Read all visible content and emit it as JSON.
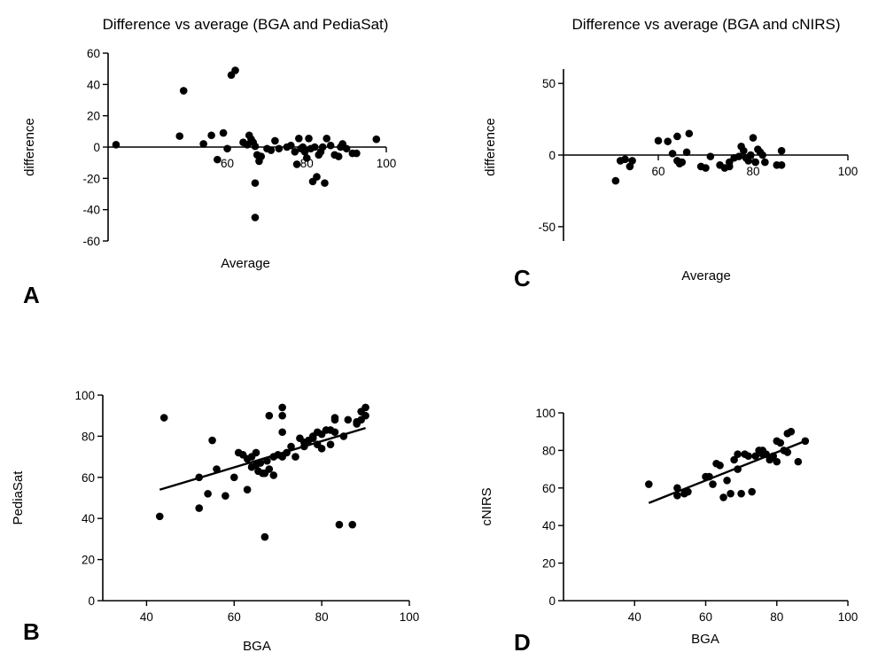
{
  "panels": {
    "a": {
      "letter": "A"
    },
    "b": {
      "letter": "B"
    },
    "c": {
      "letter": "C"
    },
    "d": {
      "letter": "D"
    }
  },
  "chart_data": [
    {
      "id": "a",
      "type": "scatter",
      "title": "Difference vs average (BGA and PediaSat)",
      "xlabel": "Average",
      "ylabel": "difference",
      "xlim": [
        30,
        100
      ],
      "ylim": [
        -60,
        60
      ],
      "xticks": [
        60,
        80,
        100
      ],
      "yticks": [
        -60,
        -40,
        -20,
        0,
        20,
        40,
        60
      ],
      "x_axis_at_y": 0,
      "grid": false,
      "points": [
        [
          32,
          1.5
        ],
        [
          48,
          7
        ],
        [
          49,
          36
        ],
        [
          54,
          2
        ],
        [
          56,
          7.5
        ],
        [
          57.5,
          -8
        ],
        [
          59,
          9
        ],
        [
          60,
          -1
        ],
        [
          61,
          46
        ],
        [
          62,
          49
        ],
        [
          64,
          3
        ],
        [
          65,
          1.5
        ],
        [
          65.5,
          7.5
        ],
        [
          66,
          5
        ],
        [
          66.5,
          3
        ],
        [
          67,
          0.5
        ],
        [
          67.5,
          -5
        ],
        [
          68,
          -9
        ],
        [
          68.5,
          -6
        ],
        [
          67,
          -23
        ],
        [
          67,
          -45
        ],
        [
          70,
          -1
        ],
        [
          71,
          -2
        ],
        [
          72,
          4
        ],
        [
          73,
          -1
        ],
        [
          75,
          0
        ],
        [
          76,
          1
        ],
        [
          77,
          -3
        ],
        [
          77.5,
          -11
        ],
        [
          78,
          5.5
        ],
        [
          78.5,
          -1
        ],
        [
          79,
          0
        ],
        [
          79.5,
          -3
        ],
        [
          80,
          -7
        ],
        [
          80.5,
          5.5
        ],
        [
          81,
          -1
        ],
        [
          81.5,
          -22
        ],
        [
          82,
          0
        ],
        [
          82.5,
          -19
        ],
        [
          83,
          -5
        ],
        [
          83.5,
          -3
        ],
        [
          84,
          0
        ],
        [
          84.5,
          -23
        ],
        [
          85,
          5.5
        ],
        [
          86,
          1
        ],
        [
          87,
          -5
        ],
        [
          88,
          -6
        ],
        [
          88.5,
          0
        ],
        [
          89,
          2
        ],
        [
          90,
          -1
        ],
        [
          91.5,
          -4
        ],
        [
          92.5,
          -4
        ],
        [
          97.5,
          5
        ]
      ]
    },
    {
      "id": "c",
      "type": "scatter",
      "title": "Difference vs average (BGA and cNIRS)",
      "xlabel": "Average",
      "ylabel": "difference",
      "xlim": [
        40,
        100
      ],
      "ylim": [
        -60,
        60
      ],
      "xticks": [
        60,
        80,
        100
      ],
      "yticks": [
        -50,
        0,
        50
      ],
      "x_axis_at_y": 0,
      "grid": false,
      "points": [
        [
          51,
          -18
        ],
        [
          52,
          -4
        ],
        [
          53,
          -3
        ],
        [
          54,
          -8
        ],
        [
          54.5,
          -4
        ],
        [
          60,
          10
        ],
        [
          62,
          9.5
        ],
        [
          63,
          1
        ],
        [
          64,
          -4
        ],
        [
          64,
          13
        ],
        [
          64.5,
          -6
        ],
        [
          65,
          -5
        ],
        [
          66,
          2
        ],
        [
          66.5,
          15
        ],
        [
          69,
          -8
        ],
        [
          70,
          -9
        ],
        [
          71,
          -1
        ],
        [
          73,
          -7
        ],
        [
          74,
          -9
        ],
        [
          75,
          -8
        ],
        [
          75,
          -5
        ],
        [
          76,
          -2
        ],
        [
          77,
          -1
        ],
        [
          77.5,
          6
        ],
        [
          78,
          3
        ],
        [
          78.5,
          -2
        ],
        [
          79,
          -4
        ],
        [
          79.5,
          0
        ],
        [
          80,
          12
        ],
        [
          80.5,
          -5
        ],
        [
          81,
          4
        ],
        [
          81.5,
          2
        ],
        [
          82,
          0
        ],
        [
          82.5,
          -5
        ],
        [
          85,
          -7
        ],
        [
          86,
          -7
        ],
        [
          86,
          3
        ]
      ]
    },
    {
      "id": "b",
      "type": "scatter",
      "xlabel": "BGA",
      "ylabel": "PediaSat",
      "xlim": [
        30,
        100
      ],
      "ylim": [
        0,
        100
      ],
      "xticks": [
        40,
        60,
        80,
        100
      ],
      "yticks": [
        0,
        20,
        40,
        60,
        80,
        100
      ],
      "grid": false,
      "regression_line": [
        [
          43,
          54
        ],
        [
          90,
          84
        ]
      ],
      "points": [
        [
          43,
          41
        ],
        [
          44,
          89
        ],
        [
          52,
          60
        ],
        [
          52,
          45
        ],
        [
          54,
          52
        ],
        [
          55,
          78
        ],
        [
          56,
          64
        ],
        [
          58,
          51
        ],
        [
          60,
          60
        ],
        [
          61,
          72
        ],
        [
          62,
          71
        ],
        [
          63,
          54
        ],
        [
          63,
          69
        ],
        [
          64,
          70
        ],
        [
          64,
          65
        ],
        [
          65,
          72
        ],
        [
          65,
          66
        ],
        [
          65.5,
          63
        ],
        [
          66,
          67
        ],
        [
          66.5,
          62
        ],
        [
          67,
          62
        ],
        [
          67,
          31
        ],
        [
          67.5,
          68
        ],
        [
          68,
          90
        ],
        [
          68,
          64
        ],
        [
          69,
          61
        ],
        [
          69,
          70
        ],
        [
          70,
          71
        ],
        [
          71,
          94
        ],
        [
          71,
          90
        ],
        [
          71,
          82
        ],
        [
          71,
          70
        ],
        [
          72,
          72
        ],
        [
          73,
          75
        ],
        [
          74,
          70
        ],
        [
          75,
          79
        ],
        [
          76,
          77
        ],
        [
          76,
          75
        ],
        [
          77,
          78
        ],
        [
          78,
          80
        ],
        [
          78,
          79
        ],
        [
          79,
          82
        ],
        [
          79,
          76
        ],
        [
          80,
          81
        ],
        [
          80,
          74
        ],
        [
          81,
          83
        ],
        [
          82,
          76
        ],
        [
          82,
          83
        ],
        [
          83,
          82
        ],
        [
          83,
          88
        ],
        [
          83,
          89
        ],
        [
          84,
          37
        ],
        [
          85,
          80
        ],
        [
          86,
          88
        ],
        [
          87,
          37
        ],
        [
          88,
          86
        ],
        [
          89,
          92
        ],
        [
          89,
          88
        ],
        [
          90,
          94
        ],
        [
          90,
          90
        ],
        [
          88,
          87
        ]
      ]
    },
    {
      "id": "d",
      "type": "scatter",
      "xlabel": "BGA",
      "ylabel": "cNIRS",
      "xlim": [
        20,
        100
      ],
      "ylim": [
        0,
        100
      ],
      "xticks": [
        40,
        60,
        80,
        100
      ],
      "yticks": [
        0,
        20,
        40,
        60,
        80,
        100
      ],
      "grid": false,
      "regression_line": [
        [
          44,
          52
        ],
        [
          88,
          85
        ]
      ],
      "points": [
        [
          44,
          62
        ],
        [
          52,
          56
        ],
        [
          52,
          60
        ],
        [
          54,
          57
        ],
        [
          55,
          58
        ],
        [
          60,
          66
        ],
        [
          61,
          66
        ],
        [
          62,
          62
        ],
        [
          63,
          73
        ],
        [
          64,
          72
        ],
        [
          65,
          55
        ],
        [
          66,
          64
        ],
        [
          67,
          57
        ],
        [
          68,
          75
        ],
        [
          69,
          70
        ],
        [
          69,
          78
        ],
        [
          70,
          57
        ],
        [
          71,
          78
        ],
        [
          72,
          77
        ],
        [
          73,
          58
        ],
        [
          74,
          77
        ],
        [
          75,
          80
        ],
        [
          76,
          78
        ],
        [
          76,
          80
        ],
        [
          77,
          78
        ],
        [
          78,
          75
        ],
        [
          79,
          77
        ],
        [
          80,
          74
        ],
        [
          80,
          85
        ],
        [
          81,
          84
        ],
        [
          82,
          80
        ],
        [
          83,
          89
        ],
        [
          83,
          79
        ],
        [
          84,
          90
        ],
        [
          86,
          74
        ],
        [
          88,
          85
        ]
      ]
    }
  ]
}
